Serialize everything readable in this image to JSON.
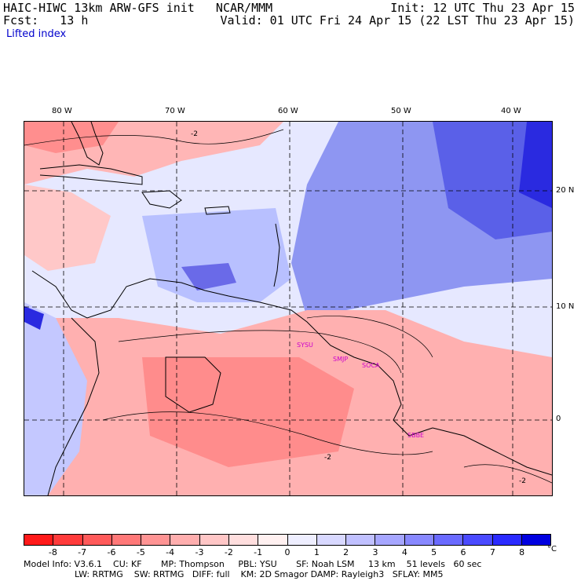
{
  "header": {
    "line1_left": "HAIC-HIWC 13km ARW-GFS init   NCAR/MMM",
    "line1_right": "Init: 12 UTC Thu 23 Apr 15",
    "line2_left": "Fcst:   13 h",
    "line2_right": "Valid: 01 UTC Fri 24 Apr 15 (22 LST Thu 23 Apr 15)",
    "field": "Lifted index"
  },
  "axes": {
    "lon_labels": [
      "80 W",
      "70 W",
      "60 W",
      "50 W",
      "40 W"
    ],
    "lat_labels": [
      "20 N",
      "10 N",
      "0"
    ]
  },
  "stations": [
    "SYSU",
    "SMJP",
    "SOCA",
    "SBBE"
  ],
  "contour_label": "-2",
  "colorbar": {
    "ticks": [
      "-8",
      "-7",
      "-6",
      "-5",
      "-4",
      "-3",
      "-2",
      "-1",
      "0",
      "1",
      "2",
      "3",
      "4",
      "5",
      "6",
      "7",
      "8"
    ],
    "unit": "°C",
    "colors": [
      "#ff1a1a",
      "#ff3b3b",
      "#ff5a5a",
      "#ff7878",
      "#ff9494",
      "#ffaeae",
      "#ffc6c6",
      "#ffdede",
      "#fff0f0",
      "#eeeeff",
      "#d8d8ff",
      "#c0c0ff",
      "#a6a6ff",
      "#8888ff",
      "#6a6aff",
      "#4a4aff",
      "#2a2aff",
      "#0000e0"
    ]
  },
  "footer": {
    "line1": "Model Info: V3.6.1    CU: KF       MP: Thompson     PBL: YSU       SF: Noah LSM     13 km    51 levels   60 sec",
    "line2": "LW: RRTMG    SW: RRTMG   DIFF: full    KM: 2D Smagor DAMP: Rayleigh3   SFLAY: MM5"
  }
}
